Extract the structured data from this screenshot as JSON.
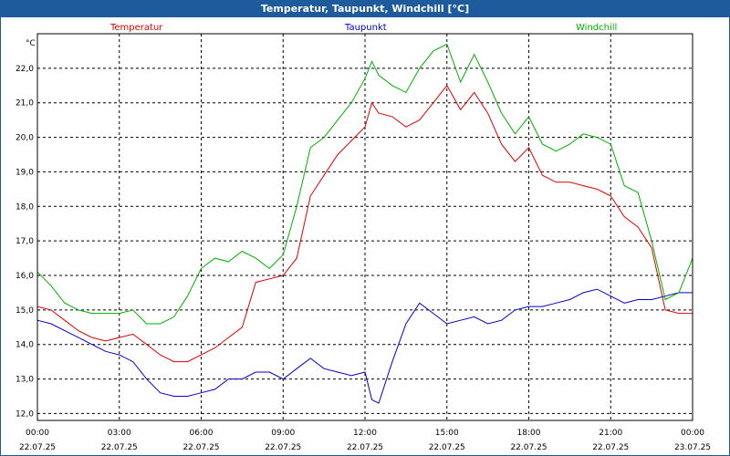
{
  "title": "Temperatur, Taupunkt, Windchill [°C]",
  "chart_data": {
    "type": "line",
    "title": "Temperatur, Taupunkt, Windchill [°C]",
    "ylabel": "°C",
    "xlabel": "",
    "ylim": [
      11.8,
      23.0
    ],
    "xlim": [
      0,
      24
    ],
    "grid": true,
    "yticks": [
      "12,0",
      "13,0",
      "14,0",
      "15,0",
      "16,0",
      "17,0",
      "18,0",
      "19,0",
      "20,0",
      "21,0",
      "22,0"
    ],
    "ytick_values": [
      12,
      13,
      14,
      15,
      16,
      17,
      18,
      19,
      20,
      21,
      22
    ],
    "xticks": [
      {
        "time": "00:00",
        "date": "22.07.25",
        "hour": 0
      },
      {
        "time": "03:00",
        "date": "22.07.25",
        "hour": 3
      },
      {
        "time": "06:00",
        "date": "22.07.25",
        "hour": 6
      },
      {
        "time": "09:00",
        "date": "22.07.25",
        "hour": 9
      },
      {
        "time": "12:00",
        "date": "22.07.25",
        "hour": 12
      },
      {
        "time": "15:00",
        "date": "22.07.25",
        "hour": 15
      },
      {
        "time": "18:00",
        "date": "22.07.25",
        "hour": 18
      },
      {
        "time": "21:00",
        "date": "22.07.25",
        "hour": 21
      },
      {
        "time": "00:00",
        "date": "23.07.25",
        "hour": 24
      }
    ],
    "legend": [
      {
        "name": "Temperatur",
        "color": "#e00000"
      },
      {
        "name": "Taupunkt",
        "color": "#0000d0"
      },
      {
        "name": "Windchill",
        "color": "#00b000"
      }
    ],
    "series": [
      {
        "name": "Temperatur",
        "color": "#e00000",
        "x": [
          0,
          0.5,
          1,
          1.5,
          2,
          2.5,
          3,
          3.5,
          4,
          4.5,
          5,
          5.5,
          6,
          6.5,
          7,
          7.5,
          8,
          8.5,
          9,
          9.5,
          10,
          10.5,
          11,
          11.5,
          12,
          12.25,
          12.5,
          13,
          13.5,
          14,
          14.5,
          15,
          15.5,
          16,
          16.5,
          17,
          17.5,
          18,
          18.5,
          19,
          19.5,
          20,
          20.5,
          21,
          21.5,
          22,
          22.5,
          23,
          23.5,
          24
        ],
        "values": [
          15.1,
          15.0,
          14.7,
          14.4,
          14.2,
          14.1,
          14.2,
          14.3,
          14.0,
          13.7,
          13.5,
          13.5,
          13.7,
          13.9,
          14.2,
          14.5,
          15.8,
          15.9,
          16.0,
          16.5,
          18.3,
          18.9,
          19.5,
          19.9,
          20.3,
          21.0,
          20.7,
          20.6,
          20.3,
          20.5,
          21.0,
          21.5,
          20.8,
          21.3,
          20.7,
          19.8,
          19.3,
          19.7,
          18.9,
          18.7,
          18.7,
          18.6,
          18.5,
          18.3,
          17.7,
          17.4,
          16.8,
          15.0,
          14.9,
          14.9
        ]
      },
      {
        "name": "Taupunkt",
        "color": "#0000d0",
        "x": [
          0,
          0.5,
          1,
          1.5,
          2,
          2.5,
          3,
          3.5,
          4,
          4.5,
          5,
          5.5,
          6,
          6.5,
          7,
          7.5,
          8,
          8.5,
          9,
          9.5,
          10,
          10.5,
          11,
          11.5,
          12,
          12.25,
          12.5,
          13,
          13.5,
          14,
          14.5,
          15,
          15.5,
          16,
          16.5,
          17,
          17.5,
          18,
          18.5,
          19,
          19.5,
          20,
          20.5,
          21,
          21.5,
          22,
          22.5,
          23,
          23.5,
          24
        ],
        "values": [
          14.7,
          14.6,
          14.4,
          14.2,
          14.0,
          13.8,
          13.7,
          13.5,
          13.0,
          12.6,
          12.5,
          12.5,
          12.6,
          12.7,
          13.0,
          13.0,
          13.2,
          13.2,
          13.0,
          13.3,
          13.6,
          13.3,
          13.2,
          13.1,
          13.2,
          12.4,
          12.3,
          13.5,
          14.6,
          15.2,
          14.9,
          14.6,
          14.7,
          14.8,
          14.6,
          14.7,
          15.0,
          15.1,
          15.1,
          15.2,
          15.3,
          15.5,
          15.6,
          15.4,
          15.2,
          15.3,
          15.3,
          15.4,
          15.5,
          15.5
        ]
      },
      {
        "name": "Windchill",
        "color": "#00b000",
        "x": [
          0,
          0.5,
          1,
          1.5,
          2,
          2.5,
          3,
          3.5,
          4,
          4.5,
          5,
          5.5,
          6,
          6.5,
          7,
          7.5,
          8,
          8.5,
          9,
          9.5,
          10,
          10.5,
          11,
          11.5,
          12,
          12.25,
          12.5,
          13,
          13.5,
          14,
          14.5,
          15,
          15.5,
          16,
          16.5,
          17,
          17.5,
          18,
          18.5,
          19,
          19.5,
          20,
          20.5,
          21,
          21.5,
          22,
          22.5,
          23,
          23.5,
          24
        ],
        "values": [
          16.1,
          15.7,
          15.2,
          15.0,
          14.9,
          14.9,
          14.9,
          15.0,
          14.6,
          14.6,
          14.8,
          15.4,
          16.2,
          16.5,
          16.4,
          16.7,
          16.5,
          16.2,
          16.6,
          18.0,
          19.7,
          20.0,
          20.5,
          21.0,
          21.7,
          22.2,
          21.8,
          21.5,
          21.3,
          22.0,
          22.5,
          22.7,
          21.6,
          22.4,
          21.6,
          20.7,
          20.1,
          20.6,
          19.8,
          19.6,
          19.8,
          20.1,
          20.0,
          19.8,
          18.6,
          18.4,
          17.0,
          15.3,
          15.5,
          16.5
        ]
      }
    ]
  }
}
